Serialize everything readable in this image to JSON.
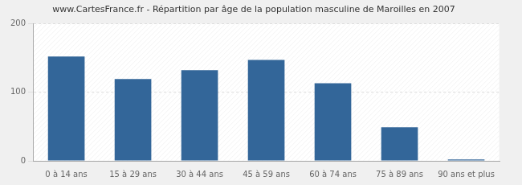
{
  "chart_data": {
    "type": "bar",
    "title": "www.CartesFrance.fr - Répartition par âge de la population masculine de Maroilles en 2007",
    "categories": [
      "0 à 14 ans",
      "15 à 29 ans",
      "30 à 44 ans",
      "45 à 59 ans",
      "60 à 74 ans",
      "75 à 89 ans",
      "90 ans et plus"
    ],
    "values": [
      152,
      119,
      132,
      147,
      113,
      49,
      2
    ],
    "color": "#336699",
    "ylim": [
      0,
      200
    ],
    "yticks": [
      0,
      100,
      200
    ],
    "grid": true
  }
}
